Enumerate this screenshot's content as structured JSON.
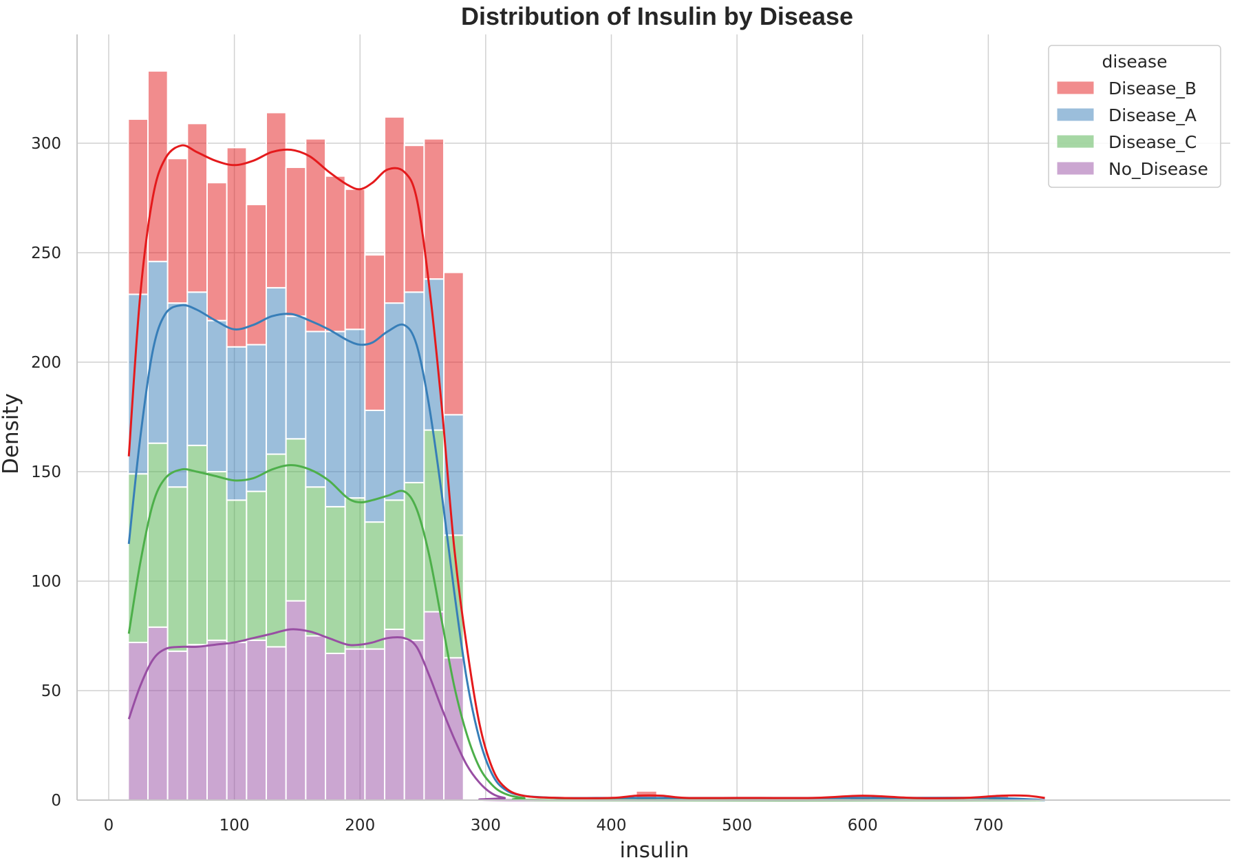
{
  "chart_data": {
    "type": "bar",
    "stacked": true,
    "title": "Distribution of Insulin by Disease",
    "xlabel": "insulin",
    "ylabel": "Density",
    "xlim": [
      -20,
      780
    ],
    "ylim": [
      0,
      350
    ],
    "x_ticks": [
      0,
      100,
      200,
      300,
      400,
      500,
      600,
      700
    ],
    "y_ticks": [
      0,
      50,
      100,
      150,
      200,
      250,
      300
    ],
    "grid": true,
    "legend": {
      "title": "disease",
      "position": "top-right"
    },
    "bin_edges": [
      15.5,
      31.2,
      46.9,
      62.6,
      78.3,
      94.0,
      109.7,
      125.4,
      141.1,
      156.8,
      172.5,
      188.2,
      203.9,
      219.6,
      235.3,
      251.0,
      266.7,
      282.4
    ],
    "series": [
      {
        "name": "No_Disease",
        "color": "#984ea3",
        "values": [
          72,
          79,
          68,
          71,
          73,
          72,
          73,
          70,
          91,
          75,
          67,
          69,
          69,
          78,
          73,
          86,
          65
        ]
      },
      {
        "name": "Disease_C",
        "color": "#4daf4a",
        "values": [
          77,
          84,
          75,
          91,
          77,
          65,
          68,
          88,
          74,
          68,
          67,
          69,
          58,
          59,
          72,
          83,
          56
        ]
      },
      {
        "name": "Disease_A",
        "color": "#377eb8",
        "values": [
          82,
          83,
          84,
          70,
          69,
          70,
          67,
          76,
          56,
          71,
          80,
          77,
          51,
          90,
          87,
          69,
          55
        ]
      },
      {
        "name": "Disease_B",
        "color": "#e41a1c",
        "values": [
          80,
          87,
          66,
          77,
          63,
          91,
          64,
          80,
          68,
          88,
          71,
          64,
          71,
          85,
          67,
          64,
          65
        ]
      }
    ],
    "outlier_bars": [
      {
        "x_start": 420,
        "x_end": 436,
        "total": 4
      },
      {
        "x_start": 590,
        "x_end": 606,
        "total": 2
      },
      {
        "x_start": 700,
        "x_end": 716,
        "total": 2
      }
    ],
    "kde": [
      {
        "name": "Disease_B",
        "color": "#e41a1c",
        "points": [
          [
            16,
            157
          ],
          [
            25,
            230
          ],
          [
            35,
            275
          ],
          [
            45,
            293
          ],
          [
            58,
            299
          ],
          [
            70,
            296
          ],
          [
            85,
            292
          ],
          [
            100,
            290
          ],
          [
            115,
            292
          ],
          [
            130,
            296
          ],
          [
            145,
            297
          ],
          [
            160,
            294
          ],
          [
            175,
            287
          ],
          [
            190,
            281
          ],
          [
            200,
            279
          ],
          [
            210,
            282
          ],
          [
            222,
            288
          ],
          [
            235,
            287
          ],
          [
            245,
            275
          ],
          [
            255,
            235
          ],
          [
            265,
            180
          ],
          [
            275,
            115
          ],
          [
            285,
            70
          ],
          [
            295,
            35
          ],
          [
            305,
            15
          ],
          [
            315,
            6
          ],
          [
            330,
            2
          ],
          [
            360,
            1
          ],
          [
            400,
            1
          ],
          [
            420,
            2
          ],
          [
            440,
            2
          ],
          [
            460,
            1
          ],
          [
            500,
            1
          ],
          [
            560,
            1
          ],
          [
            600,
            2
          ],
          [
            640,
            1
          ],
          [
            680,
            1
          ],
          [
            710,
            2
          ],
          [
            730,
            2
          ],
          [
            745,
            1
          ]
        ]
      },
      {
        "name": "Disease_A",
        "color": "#377eb8",
        "points": [
          [
            16,
            117
          ],
          [
            25,
            165
          ],
          [
            35,
            205
          ],
          [
            45,
            222
          ],
          [
            58,
            226
          ],
          [
            70,
            224
          ],
          [
            85,
            219
          ],
          [
            100,
            215
          ],
          [
            115,
            217
          ],
          [
            130,
            221
          ],
          [
            145,
            222
          ],
          [
            160,
            219
          ],
          [
            175,
            215
          ],
          [
            190,
            210
          ],
          [
            200,
            208
          ],
          [
            210,
            209
          ],
          [
            222,
            214
          ],
          [
            235,
            217
          ],
          [
            245,
            208
          ],
          [
            255,
            180
          ],
          [
            265,
            140
          ],
          [
            275,
            95
          ],
          [
            285,
            55
          ],
          [
            295,
            28
          ],
          [
            305,
            12
          ],
          [
            315,
            5
          ],
          [
            330,
            2
          ],
          [
            360,
            1
          ],
          [
            400,
            1
          ],
          [
            430,
            1
          ],
          [
            470,
            1
          ],
          [
            550,
            1
          ],
          [
            610,
            1
          ],
          [
            700,
            1
          ],
          [
            745,
            0
          ]
        ]
      },
      {
        "name": "Disease_C",
        "color": "#4daf4a",
        "points": [
          [
            16,
            76
          ],
          [
            25,
            108
          ],
          [
            35,
            135
          ],
          [
            45,
            147
          ],
          [
            58,
            151
          ],
          [
            70,
            150
          ],
          [
            85,
            148
          ],
          [
            100,
            146
          ],
          [
            115,
            147
          ],
          [
            130,
            151
          ],
          [
            145,
            153
          ],
          [
            160,
            151
          ],
          [
            175,
            146
          ],
          [
            190,
            138
          ],
          [
            200,
            136
          ],
          [
            210,
            137
          ],
          [
            222,
            139
          ],
          [
            235,
            141
          ],
          [
            245,
            133
          ],
          [
            255,
            112
          ],
          [
            265,
            82
          ],
          [
            275,
            52
          ],
          [
            285,
            30
          ],
          [
            295,
            15
          ],
          [
            305,
            7
          ],
          [
            315,
            3
          ],
          [
            330,
            1
          ],
          [
            360,
            0
          ],
          [
            745,
            0
          ]
        ]
      },
      {
        "name": "No_Disease",
        "color": "#984ea3",
        "points": [
          [
            16,
            37
          ],
          [
            25,
            52
          ],
          [
            35,
            64
          ],
          [
            45,
            69
          ],
          [
            58,
            70
          ],
          [
            70,
            70
          ],
          [
            85,
            71
          ],
          [
            100,
            72
          ],
          [
            115,
            74
          ],
          [
            130,
            76
          ],
          [
            145,
            78
          ],
          [
            160,
            77
          ],
          [
            175,
            74
          ],
          [
            190,
            71
          ],
          [
            200,
            71
          ],
          [
            210,
            72
          ],
          [
            222,
            74
          ],
          [
            235,
            74
          ],
          [
            245,
            70
          ],
          [
            255,
            57
          ],
          [
            265,
            42
          ],
          [
            275,
            28
          ],
          [
            285,
            16
          ],
          [
            295,
            8
          ],
          [
            305,
            3
          ],
          [
            315,
            1
          ],
          [
            330,
            0
          ],
          [
            745,
            0
          ]
        ]
      }
    ]
  }
}
